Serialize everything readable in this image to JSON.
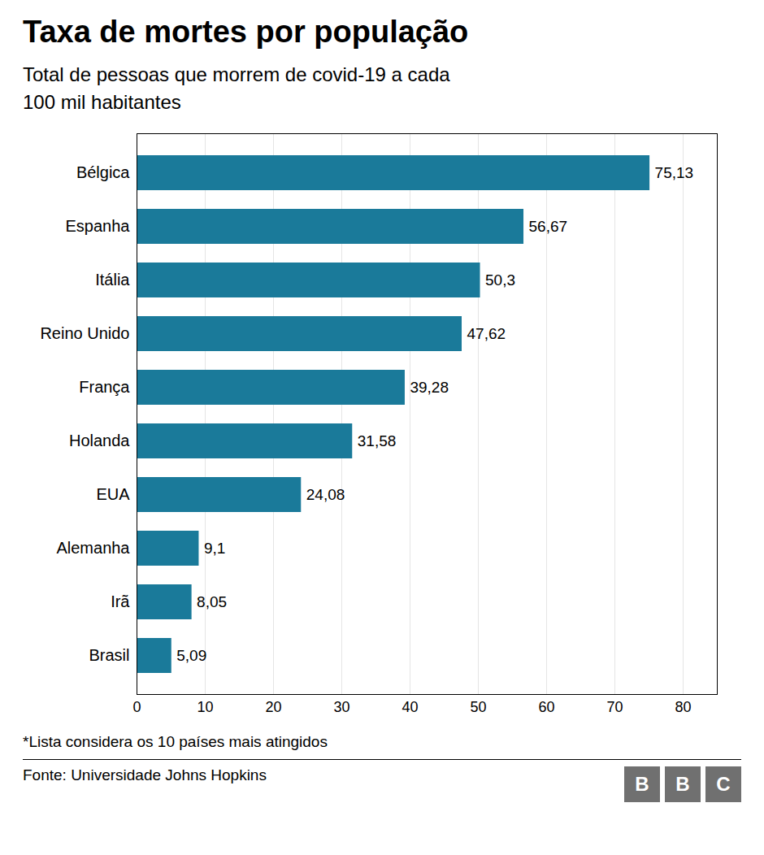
{
  "chart_data": {
    "type": "bar",
    "orientation": "horizontal",
    "title": "Taxa de mortes por população",
    "subtitle": "Total de pessoas que morrem de covid-19 a cada\n100 mil habitantes",
    "footnote": "*Lista considera os 10 países mais atingidos",
    "source": "Fonte: Universidade Johns Hopkins",
    "logo": "BBC",
    "categories": [
      "Bélgica",
      "Espanha",
      "Itália",
      "Reino Unido",
      "França",
      "Holanda",
      "EUA",
      "Alemanha",
      "Irã",
      "Brasil"
    ],
    "values": [
      75.13,
      56.67,
      50.3,
      47.62,
      39.28,
      31.58,
      24.08,
      9.1,
      8.05,
      5.09
    ],
    "value_labels": [
      "75,13",
      "56,67",
      "50,3",
      "47,62",
      "39,28",
      "31,58",
      "24,08",
      "9,1",
      "8,05",
      "5,09"
    ],
    "data_labels": true,
    "color": "#1a7a9a",
    "xlim": [
      0,
      85
    ],
    "xticks": [
      0,
      10,
      20,
      30,
      40,
      50,
      60,
      70,
      80
    ],
    "grid": true
  }
}
